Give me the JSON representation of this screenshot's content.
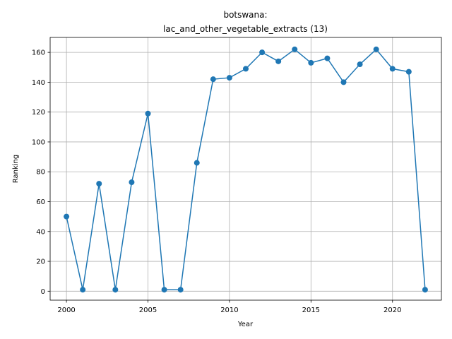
{
  "chart_data": {
    "type": "line",
    "title_line1": "botswana:",
    "title_line2": "lac_and_other_vegetable_extracts (13)",
    "xlabel": "Year",
    "ylabel": "Ranking",
    "xlim": [
      1999,
      2023
    ],
    "ylim": [
      -6,
      170
    ],
    "xticks": [
      2000,
      2005,
      2010,
      2015,
      2020
    ],
    "yticks": [
      0,
      20,
      40,
      60,
      80,
      100,
      120,
      140,
      160
    ],
    "grid": true,
    "series": [
      {
        "color": "#1f77b4",
        "x": [
          2000,
          2001,
          2002,
          2003,
          2004,
          2005,
          2006,
          2007,
          2008,
          2009,
          2010,
          2011,
          2012,
          2013,
          2014,
          2015,
          2016,
          2017,
          2018,
          2019,
          2020,
          2021,
          2022
        ],
        "y": [
          50,
          1,
          72,
          1,
          73,
          119,
          1,
          1,
          86,
          142,
          143,
          149,
          160,
          154,
          162,
          153,
          156,
          140,
          152,
          162,
          149,
          147,
          1
        ]
      }
    ]
  }
}
